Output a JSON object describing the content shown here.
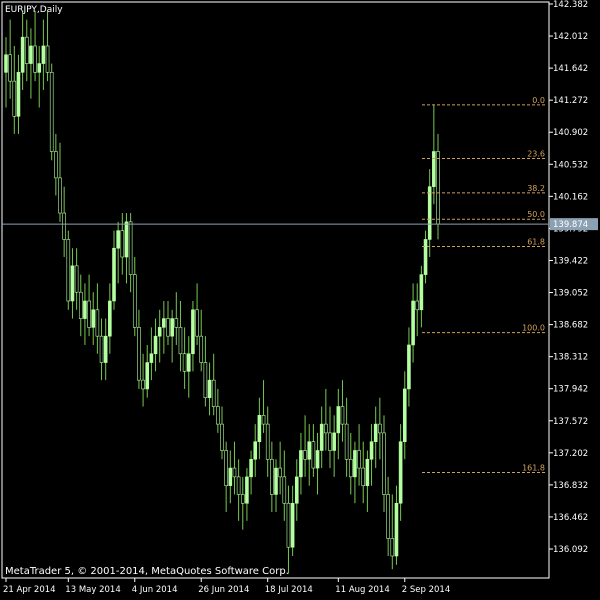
{
  "window": {
    "symbol_title": "EURJPY,Daily",
    "copyright": "MetaTrader 5, © 2001-2014, MetaQuotes Software Corp."
  },
  "colors": {
    "background": "#000000",
    "frame": "#ffffff",
    "candle_body": "#b4ffa0",
    "candle_wick": "#78c850",
    "fibo": "#d2a05a",
    "current_price_line": "#8ca0b4",
    "current_price_tag_bg": "#8ca0b4",
    "axis_text": "#ffffff"
  },
  "chart_data": {
    "type": "candlestick",
    "title": "EURJPY,Daily",
    "ylim": [
      135.85,
      142.4
    ],
    "y_ticks": [
      "142.382",
      "142.012",
      "141.642",
      "141.272",
      "140.902",
      "140.532",
      "140.162",
      "139.792",
      "139.422",
      "139.052",
      "138.682",
      "138.312",
      "137.942",
      "137.572",
      "137.202",
      "136.832",
      "136.462",
      "136.092"
    ],
    "x_ticks": [
      {
        "label": "21 Apr 2014",
        "index": 0
      },
      {
        "label": "13 May 2014",
        "index": 15
      },
      {
        "label": "4 Jun 2014",
        "index": 31
      },
      {
        "label": "26 Jun 2014",
        "index": 47
      },
      {
        "label": "18 Jul 2014",
        "index": 63
      },
      {
        "label": "11 Aug 2014",
        "index": 80
      },
      {
        "label": "2 Sep 2014",
        "index": 96
      }
    ],
    "current_price": {
      "value": 139.874,
      "label": "139.874"
    },
    "fibonacci": [
      {
        "label": "0.0",
        "price": 141.23
      },
      {
        "label": "23.6",
        "price": 140.62
      },
      {
        "label": "38.2",
        "price": 140.23
      },
      {
        "label": "50.0",
        "price": 139.93
      },
      {
        "label": "61.8",
        "price": 139.62
      },
      {
        "label": "100.0",
        "price": 138.64
      },
      {
        "label": "161.8",
        "price": 137.05
      }
    ],
    "candles": [
      {
        "o": 141.6,
        "h": 142.0,
        "l": 141.2,
        "c": 141.8
      },
      {
        "o": 141.8,
        "h": 142.2,
        "l": 141.3,
        "c": 141.5
      },
      {
        "o": 141.5,
        "h": 141.9,
        "l": 140.9,
        "c": 141.1
      },
      {
        "o": 141.1,
        "h": 141.8,
        "l": 140.9,
        "c": 141.6
      },
      {
        "o": 141.6,
        "h": 142.3,
        "l": 141.4,
        "c": 142.0
      },
      {
        "o": 142.0,
        "h": 142.2,
        "l": 141.5,
        "c": 141.7
      },
      {
        "o": 141.7,
        "h": 142.1,
        "l": 141.3,
        "c": 141.9
      },
      {
        "o": 141.9,
        "h": 142.3,
        "l": 141.5,
        "c": 141.6
      },
      {
        "o": 141.6,
        "h": 141.9,
        "l": 141.2,
        "c": 141.7
      },
      {
        "o": 141.7,
        "h": 142.2,
        "l": 141.4,
        "c": 141.9
      },
      {
        "o": 141.9,
        "h": 142.3,
        "l": 141.5,
        "c": 141.6
      },
      {
        "o": 141.6,
        "h": 141.7,
        "l": 140.6,
        "c": 140.7
      },
      {
        "o": 140.7,
        "h": 140.9,
        "l": 140.2,
        "c": 140.4
      },
      {
        "o": 140.4,
        "h": 140.8,
        "l": 139.9,
        "c": 140.0
      },
      {
        "o": 140.0,
        "h": 140.3,
        "l": 139.5,
        "c": 139.7
      },
      {
        "o": 139.7,
        "h": 139.8,
        "l": 138.9,
        "c": 139.0
      },
      {
        "o": 139.0,
        "h": 139.6,
        "l": 138.8,
        "c": 139.4
      },
      {
        "o": 139.4,
        "h": 139.6,
        "l": 138.9,
        "c": 139.1
      },
      {
        "o": 139.1,
        "h": 139.3,
        "l": 138.6,
        "c": 138.8
      },
      {
        "o": 138.8,
        "h": 139.2,
        "l": 138.5,
        "c": 139.0
      },
      {
        "o": 139.0,
        "h": 139.3,
        "l": 138.6,
        "c": 138.7
      },
      {
        "o": 138.7,
        "h": 139.1,
        "l": 138.5,
        "c": 138.9
      },
      {
        "o": 138.9,
        "h": 139.2,
        "l": 138.4,
        "c": 138.6
      },
      {
        "o": 138.6,
        "h": 138.8,
        "l": 138.1,
        "c": 138.3
      },
      {
        "o": 138.3,
        "h": 138.8,
        "l": 138.1,
        "c": 138.6
      },
      {
        "o": 138.6,
        "h": 139.2,
        "l": 138.4,
        "c": 139.0
      },
      {
        "o": 139.0,
        "h": 139.8,
        "l": 138.9,
        "c": 139.6
      },
      {
        "o": 139.6,
        "h": 139.9,
        "l": 139.2,
        "c": 139.8
      },
      {
        "o": 139.8,
        "h": 140.0,
        "l": 139.3,
        "c": 139.5
      },
      {
        "o": 139.5,
        "h": 140.0,
        "l": 139.2,
        "c": 139.9
      },
      {
        "o": 139.9,
        "h": 140.0,
        "l": 139.1,
        "c": 139.3
      },
      {
        "o": 139.3,
        "h": 139.5,
        "l": 138.6,
        "c": 138.7
      },
      {
        "o": 138.7,
        "h": 138.9,
        "l": 138.0,
        "c": 138.1
      },
      {
        "o": 138.1,
        "h": 138.4,
        "l": 137.8,
        "c": 138.0
      },
      {
        "o": 138.0,
        "h": 138.5,
        "l": 137.9,
        "c": 138.3
      },
      {
        "o": 138.3,
        "h": 138.7,
        "l": 138.1,
        "c": 138.4
      },
      {
        "o": 138.4,
        "h": 138.8,
        "l": 138.2,
        "c": 138.6
      },
      {
        "o": 138.6,
        "h": 138.9,
        "l": 138.3,
        "c": 138.7
      },
      {
        "o": 138.7,
        "h": 139.0,
        "l": 138.4,
        "c": 138.8
      },
      {
        "o": 138.8,
        "h": 139.0,
        "l": 138.5,
        "c": 138.6
      },
      {
        "o": 138.6,
        "h": 138.9,
        "l": 138.3,
        "c": 138.8
      },
      {
        "o": 138.8,
        "h": 139.1,
        "l": 138.5,
        "c": 138.7
      },
      {
        "o": 138.7,
        "h": 139.0,
        "l": 138.2,
        "c": 138.4
      },
      {
        "o": 138.4,
        "h": 138.7,
        "l": 138.0,
        "c": 138.2
      },
      {
        "o": 138.2,
        "h": 138.6,
        "l": 137.9,
        "c": 138.4
      },
      {
        "o": 138.4,
        "h": 139.0,
        "l": 138.2,
        "c": 138.9
      },
      {
        "o": 138.9,
        "h": 139.2,
        "l": 138.5,
        "c": 138.6
      },
      {
        "o": 138.6,
        "h": 138.9,
        "l": 138.2,
        "c": 138.3
      },
      {
        "o": 138.3,
        "h": 138.6,
        "l": 137.8,
        "c": 137.9
      },
      {
        "o": 137.9,
        "h": 138.3,
        "l": 137.7,
        "c": 138.1
      },
      {
        "o": 138.1,
        "h": 138.4,
        "l": 137.7,
        "c": 137.8
      },
      {
        "o": 137.8,
        "h": 138.0,
        "l": 137.5,
        "c": 137.6
      },
      {
        "o": 137.6,
        "h": 137.8,
        "l": 137.2,
        "c": 137.3
      },
      {
        "o": 137.3,
        "h": 137.4,
        "l": 136.6,
        "c": 136.9
      },
      {
        "o": 136.9,
        "h": 137.3,
        "l": 136.7,
        "c": 137.1
      },
      {
        "o": 137.1,
        "h": 137.4,
        "l": 136.8,
        "c": 137.0
      },
      {
        "o": 137.0,
        "h": 137.2,
        "l": 136.5,
        "c": 136.8
      },
      {
        "o": 136.8,
        "h": 137.0,
        "l": 136.4,
        "c": 136.7
      },
      {
        "o": 136.7,
        "h": 137.1,
        "l": 136.5,
        "c": 137.0
      },
      {
        "o": 137.0,
        "h": 137.3,
        "l": 136.8,
        "c": 137.2
      },
      {
        "o": 137.2,
        "h": 137.6,
        "l": 137.0,
        "c": 137.4
      },
      {
        "o": 137.4,
        "h": 137.9,
        "l": 137.2,
        "c": 137.7
      },
      {
        "o": 137.7,
        "h": 138.1,
        "l": 137.5,
        "c": 137.6
      },
      {
        "o": 137.6,
        "h": 137.8,
        "l": 137.0,
        "c": 137.2
      },
      {
        "o": 137.2,
        "h": 137.4,
        "l": 136.6,
        "c": 136.8
      },
      {
        "o": 136.8,
        "h": 137.2,
        "l": 136.6,
        "c": 137.1
      },
      {
        "o": 137.1,
        "h": 137.4,
        "l": 136.8,
        "c": 137.0
      },
      {
        "o": 137.0,
        "h": 137.3,
        "l": 136.5,
        "c": 136.7
      },
      {
        "o": 136.7,
        "h": 136.9,
        "l": 135.9,
        "c": 136.2
      },
      {
        "o": 136.2,
        "h": 136.9,
        "l": 136.1,
        "c": 136.7
      },
      {
        "o": 136.7,
        "h": 137.2,
        "l": 136.5,
        "c": 137.0
      },
      {
        "o": 137.0,
        "h": 137.5,
        "l": 136.8,
        "c": 137.3
      },
      {
        "o": 137.3,
        "h": 137.7,
        "l": 137.0,
        "c": 137.2
      },
      {
        "o": 137.2,
        "h": 137.6,
        "l": 136.9,
        "c": 137.4
      },
      {
        "o": 137.4,
        "h": 137.6,
        "l": 137.0,
        "c": 137.1
      },
      {
        "o": 137.1,
        "h": 137.5,
        "l": 136.8,
        "c": 137.3
      },
      {
        "o": 137.3,
        "h": 137.8,
        "l": 137.1,
        "c": 137.6
      },
      {
        "o": 137.6,
        "h": 138.0,
        "l": 137.3,
        "c": 137.5
      },
      {
        "o": 137.5,
        "h": 137.8,
        "l": 137.1,
        "c": 137.3
      },
      {
        "o": 137.3,
        "h": 137.7,
        "l": 137.0,
        "c": 137.5
      },
      {
        "o": 137.5,
        "h": 138.0,
        "l": 137.2,
        "c": 137.8
      },
      {
        "o": 137.8,
        "h": 138.1,
        "l": 137.4,
        "c": 137.6
      },
      {
        "o": 137.6,
        "h": 137.9,
        "l": 137.0,
        "c": 137.2
      },
      {
        "o": 137.2,
        "h": 137.5,
        "l": 136.8,
        "c": 137.0
      },
      {
        "o": 137.0,
        "h": 137.4,
        "l": 136.7,
        "c": 137.3
      },
      {
        "o": 137.3,
        "h": 137.6,
        "l": 136.9,
        "c": 137.1
      },
      {
        "o": 137.1,
        "h": 137.4,
        "l": 136.7,
        "c": 136.9
      },
      {
        "o": 136.9,
        "h": 137.3,
        "l": 136.6,
        "c": 137.2
      },
      {
        "o": 137.2,
        "h": 137.6,
        "l": 136.9,
        "c": 137.4
      },
      {
        "o": 137.4,
        "h": 137.8,
        "l": 137.1,
        "c": 137.6
      },
      {
        "o": 137.6,
        "h": 137.9,
        "l": 137.2,
        "c": 137.5
      },
      {
        "o": 137.5,
        "h": 137.7,
        "l": 136.6,
        "c": 136.8
      },
      {
        "o": 136.8,
        "h": 137.0,
        "l": 136.1,
        "c": 136.3
      },
      {
        "o": 136.3,
        "h": 136.8,
        "l": 135.95,
        "c": 136.1
      },
      {
        "o": 136.1,
        "h": 136.9,
        "l": 136.0,
        "c": 136.7
      },
      {
        "o": 136.7,
        "h": 137.6,
        "l": 136.5,
        "c": 137.4
      },
      {
        "o": 137.4,
        "h": 138.2,
        "l": 137.2,
        "c": 138.0
      },
      {
        "o": 138.0,
        "h": 138.7,
        "l": 137.8,
        "c": 138.5
      },
      {
        "o": 138.5,
        "h": 139.2,
        "l": 138.3,
        "c": 139.0
      },
      {
        "o": 139.0,
        "h": 139.2,
        "l": 138.6,
        "c": 138.9
      },
      {
        "o": 138.9,
        "h": 139.4,
        "l": 138.7,
        "c": 139.3
      },
      {
        "o": 139.3,
        "h": 139.8,
        "l": 139.2,
        "c": 139.7
      },
      {
        "o": 139.7,
        "h": 140.5,
        "l": 139.5,
        "c": 140.3
      },
      {
        "o": 140.3,
        "h": 141.23,
        "l": 140.1,
        "c": 140.7
      },
      {
        "o": 140.7,
        "h": 140.9,
        "l": 139.7,
        "c": 139.874
      }
    ]
  }
}
